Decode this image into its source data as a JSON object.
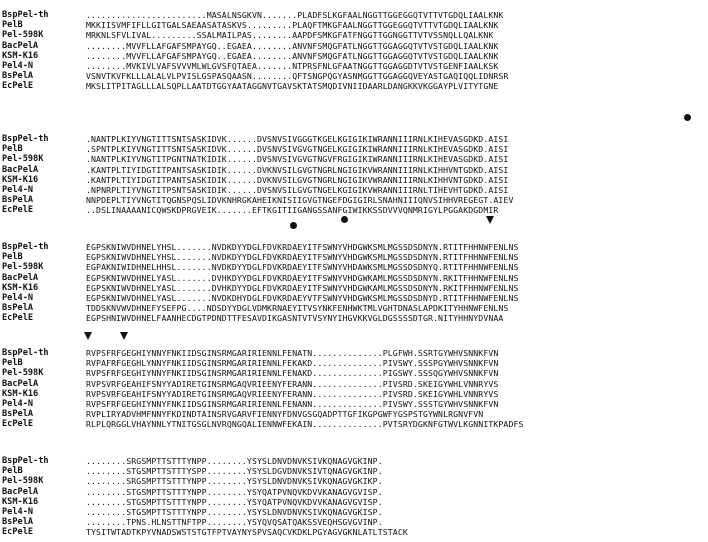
{
  "blocks": [
    {
      "labels": [
        "BspPel-th",
        "PelB",
        "Pel-598K",
        "BacPelA",
        "KSM-K16",
        "Pel4-N",
        "BsPelA",
        "EcPelE"
      ],
      "seqs": [
        "........................MASALNSGKVN.......PLADFSLKGFAALNGGTTGGEGGQTVTTVTGDQLIAALKNK",
        "MKKIISVMFIFLLGITGALSAEAASATASKVS.........PLAQFTMKGFAALNGGTTGGEGGQTVTTVTGDQLIAALKNK",
        "MRKNLSFVLIVAL.........SSALMAILPAS........AAPDFSMKGFATFNGGTTGGNGGTTVTVSSNQLLQALKNK",
        "........MVVFLLAFGAFSMPAYGQ..EGAEA........ANVNFSMQGFATLNGGTTGGAGGQTVTVSTGDQLIAALKNK",
        "........MVVFLLAFGAFSMPAYGQ..EGAEA........ANVNFSMQGFATLNGGTTGGAGGQTVTVSTGDQLIAALKNK",
        "........MVKIVLVAFSVVVMLWLGVSFQTAEA.......NTPRSFNLGFAATNGGTTGGAGGDTVTVSTGENFIAALKSK",
        "VSNVTKVFKLLLALALVLPVISLGSPASQAASN........QFTSNGPQGYASNMGGTTGGAGGQVEYASTGAQIQQLIDNRSR",
        "MKSLITPITAGLLLALSQPLLAATDTGGYAATAGGNVTGAVSKTATSMQDIVNIIDAARLDANGKKVKGGAYPLVITYTGNE"
      ]
    },
    {
      "labels": [
        "BspPel-th",
        "PelB",
        "Pel-598K",
        "BacPelA",
        "KSM-K16",
        "Pel4-N",
        "BsPelA",
        "EcPelE"
      ],
      "seqs": [
        ".NANTPLKIYVNGTITTSNTSASKIDVK......DVSNVSIVGGGTKGELKGIGIKIWRANNIIIRNLKIHEVASGDKD.AISI",
        ".SPNTPLKIYVNGTITTSNTSASKIDVK......DVSNVSIVGVGTNGELKGIGIKIWRANNIIIRNLKIHEVASGDKD.AISI",
        ".NANTPLKIYVNGTITPGNTNATKIDIK......DVSNVSIVGVGTNGVFRGIGIKIWRANNIIIRNLKIHEVASGDKD.AISI",
        ".KANTPLTIYIDGTITPANTSASKIDIK......DVKNVSILGVGTNGRLNGIGIKVWRANNIIIRNLKIHHVNTGDKD.AISI",
        ".KANTPLTIYIDGTITPANTSASKIDIK......DVKNVSILGVGTNGRLNGIGIKVWRANNIIIRNLKIHHVNTGDKD.AISI",
        ".NPNRPLTIYVNGTITPSNTSASKIDIK......DVSNVSILGVGTNGELKGIGIKVWRANNIIIRNLTIHEVHTGDKD.AISI",
        "NNPDEPLTIYVNGTITQGNSPQSLIDVKNHRGKAHEIKNISIIGVGTNGEFDGIGIRLSNAHNIIIQNVSIHHVREGEGT.AIEV",
        "..DSLINAAAANICQWSKDPRGVEIK.......EFTKGITIIGANGSSANFGIWIKKSSDVVVQNMRIGYLPGGAKDGDMIR"
      ]
    },
    {
      "labels": [
        "BspPel-th",
        "PelB",
        "Pel-598K",
        "BacPelA",
        "KSM-K16",
        "Pel4-N",
        "BsPelA",
        "EcPelE"
      ],
      "seqs": [
        "EGPSKNIWVDHNELYHSL.......NVDKDYYDGLFDVKRDAEYITFSWNYVHDGWKSMLMGSSDSDNYN.RTITFHHNWFENLNS",
        "EGPSKNIWVDHNELYHSL.......NVDKDYYDGLFDVKRDAEYITFSWNYVHDGWKSMLMGSSDSDNYN.RTITFHHNWFENLNS",
        "EGPAKNIWIDHNELHHSL.......NVDKDYYDGLFDVKRDAEYITFSWNYVHDAWKSMLMGSSDSDNYQ.RTITFHHNWFENLNS",
        "EGPSKNIWVDHNELYASL.......DVHKDYYDGLFDVKRDAEYITFSWNYVHDGWKAMLMGSSDSDNYN.RKITFHHNWFENLNS",
        "EGPSKNIWVDHNELYASL.......DVHKDYYDGLFDVKRDAEYITFSWNYVHDGWKAMLMGSSDSDNYN.RKITFHHNWFENLNS",
        "EGPSKNIWVDHNELYASL.......NVDKDHYDGLFDVKRDAEYVTFSWNYVHDGWKSMLMGSSDSDNYD.RTITFHHNWFENLNS",
        "TDDSKNVWVDHNEFYSEFPG....NDSDYYDGLVDMKRNAEYITVSYNKFENHWKTMLVGHTDNASLAPDKITYHHNWFENLNS",
        "EGPSHNIWVDHNELFAANHECDGTPDNDTTFESAVDIKGASNTVTVSYNYIHGVKKVGLDGSSSSDTGR.NITYHHNYDVNAA"
      ]
    },
    {
      "labels": [
        "BspPel-th",
        "PelB",
        "Pel-598K",
        "BacPelA",
        "KSM-K16",
        "Pel4-N",
        "BsPelA",
        "EcPelE"
      ],
      "seqs": [
        "RVPSFRFGEGHIYNNYFNKIIDSGINSRMGARIRIENNLFENATN..............PLGFWH.SSRTGYWHVSNNKFVN",
        "RVPAFRFGEGHLYNNYFNKIIDSGINSRMGARIRIENNLFEKAKD..............PIVSWY.SSSPGYWHVSNNKFVN",
        "RVPSFRFGEGHIYNNYFNKIIDSGINSRMGARIRIENNLFENAKD..............PIGSWY.SSSQGYWHVSNNKFVN",
        "RVPSVRFGEAHIFSNYYADIRETGINSRMGAQVRIEENYFERANN..............PIVSRD.SKEIGYWHLVNNRYVS",
        "RVPSVRFGEAHIFSNYYADIRETGINSRMGAQVRIEENYFERANN..............PIVSRD.SKEIGYWHLVNNRYVS",
        "RVPSFRFGEGHIYNNYFNKIIDSGINSRMGARIRIENNLFENANN..............PIVSWY.SSSTGYWHVSNNKFVN",
        "RVPLIRYADVHMFNNYFKDINDTAINSRVGARVFIENNYFDNVGSGQADPTTGFIKGPGWFYGSPSTGYWNLRGNVFVN",
        "RLPLQRGGLVHAYNNLYTNITGSGLNVRQNGQALIENNWFEKAIN..............PVTSRYDGKNFGTWVLKGNNITKPADFS"
      ]
    },
    {
      "labels": [
        "BspPel-th",
        "PelB",
        "Pel-598K",
        "BacPelA",
        "KSM-K16",
        "Pel4-N",
        "BsPelA",
        "EcPelE"
      ],
      "seqs": [
        "........SRGSMPTTSTTTYNPP........YSYSLDNVDNVKSIVKQNAGVGKINP.",
        "........STGSMPTTSTTTYSPP........YSYSLDGVDNVKSIVTQNAGVGKINP.",
        "........SRGSMPTTSTTTYNPP........YSYSLDNVDNVKSIVKQNAGVGKIKP.",
        "........STGSMPTTSTTTYNPP........YSYQATPVNQVKDVVKANAGVGVISP.",
        "........STGSMPTTSTTTYNPP........YSYQATPVNQVKDVVKANAGVGVISP.",
        "........STGSMPTTSTTTYNPP........YSYSLDNVDNVKSIVKQNAGVGKISP.",
        "........TPNS.HLNSTTNFTPP........YSYQVQSATQAKSSVEQHSGVGVINP.",
        "TYSITWTADTKPYVNADSWSTSTGTFPTVAYNYSPVSAQCVKDKLPGYAGVGKNLATLTSTACK"
      ]
    }
  ]
}
